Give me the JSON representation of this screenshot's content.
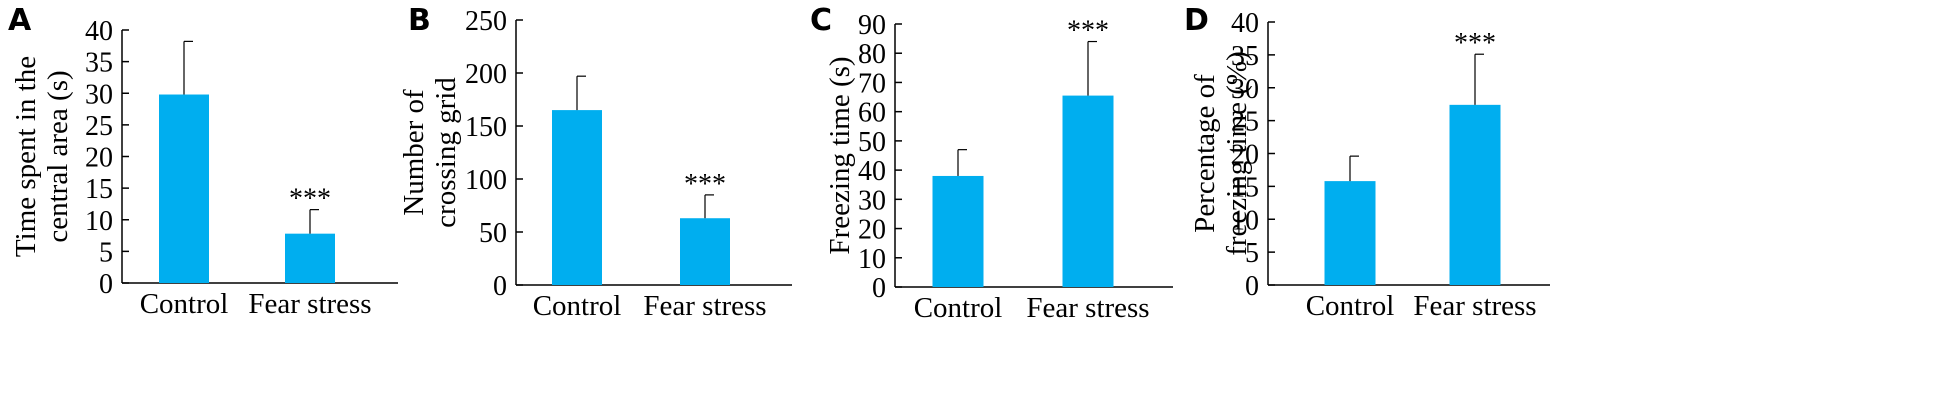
{
  "chart_data": [
    {
      "panel": "A",
      "type": "bar",
      "categories": [
        "Control",
        "Fear stress"
      ],
      "values": [
        29.8,
        7.8
      ],
      "errors": [
        8.4,
        3.8
      ],
      "significance": [
        "",
        "***"
      ],
      "ylabel": [
        "Time spent in the",
        "central area (s)"
      ],
      "ylim": [
        0,
        40
      ],
      "yticks": [
        0,
        5,
        10,
        15,
        20,
        25,
        30,
        35,
        40
      ],
      "bar_color": "#00aeef"
    },
    {
      "panel": "B",
      "type": "bar",
      "categories": [
        "Control",
        "Fear stress"
      ],
      "values": [
        165,
        63
      ],
      "errors": [
        32,
        22
      ],
      "significance": [
        "",
        "***"
      ],
      "ylabel": [
        "Number of",
        "crossing grid"
      ],
      "ylim": [
        0,
        250
      ],
      "yticks": [
        0,
        50,
        100,
        150,
        200,
        250
      ],
      "bar_color": "#00aeef"
    },
    {
      "panel": "C",
      "type": "bar",
      "categories": [
        "Control",
        "Fear stress"
      ],
      "values": [
        38,
        65.5
      ],
      "errors": [
        9,
        18.5
      ],
      "significance": [
        "",
        "***"
      ],
      "ylabel": [
        "Freezing time (s)"
      ],
      "ylim": [
        0,
        90
      ],
      "yticks": [
        0,
        10,
        20,
        30,
        40,
        50,
        60,
        70,
        80,
        90
      ],
      "bar_color": "#00aeef"
    },
    {
      "panel": "D",
      "type": "bar",
      "categories": [
        "Control",
        "Fear stress"
      ],
      "values": [
        15.8,
        27.4
      ],
      "errors": [
        3.8,
        7.7
      ],
      "significance": [
        "",
        "***"
      ],
      "ylabel": [
        "Percentage of",
        "freezing time (%)"
      ],
      "ylim": [
        0,
        40
      ],
      "yticks": [
        0,
        5,
        10,
        15,
        20,
        25,
        30,
        35,
        40
      ],
      "bar_color": "#00aeef"
    }
  ]
}
